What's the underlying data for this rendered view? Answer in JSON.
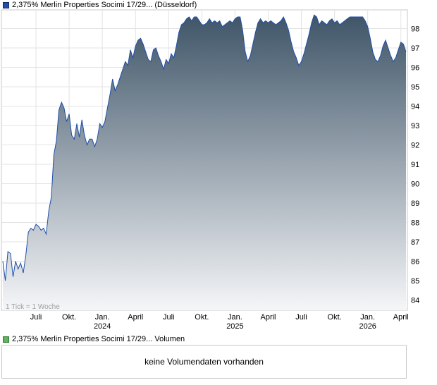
{
  "price_legend": {
    "label": "2,375% Merlin Properties Socimi 17/29... (Düsseldorf)",
    "swatch_color": "#1f4fa8"
  },
  "volume_legend": {
    "label": "2,375% Merlin Properties Socimi 17/29... Volumen",
    "swatch_color": "#5fb35f"
  },
  "volume_panel": {
    "message": "keine Volumendaten vorhanden"
  },
  "tick_note": "1 Tick = 1 Woche",
  "chart_data": {
    "type": "area",
    "title": "2,375% Merlin Properties Socimi 17/29... (Düsseldorf)",
    "ylim": [
      83.5,
      98.8
    ],
    "y_ticks": [
      84,
      85,
      86,
      87,
      88,
      89,
      90,
      91,
      92,
      93,
      94,
      95,
      96,
      97,
      98
    ],
    "x_ticks": [
      {
        "label": "Juli",
        "year": "",
        "x": 13
      },
      {
        "label": "Okt.",
        "year": "",
        "x": 26
      },
      {
        "label": "Jan.",
        "year": "2024",
        "x": 39
      },
      {
        "label": "April",
        "year": "",
        "x": 52
      },
      {
        "label": "Juli",
        "year": "",
        "x": 65
      },
      {
        "label": "Okt.",
        "year": "",
        "x": 78
      },
      {
        "label": "Jan.",
        "year": "2025",
        "x": 91
      },
      {
        "label": "April",
        "year": "",
        "x": 104
      },
      {
        "label": "Juli",
        "year": "",
        "x": 117
      },
      {
        "label": "Okt.",
        "year": "",
        "x": 130
      },
      {
        "label": "Jan.",
        "year": "2026",
        "x": 143
      },
      {
        "label": "April",
        "year": "",
        "x": 156
      }
    ],
    "xlim": [
      0,
      158
    ],
    "grid": true,
    "line_color": "#1f4fa8",
    "fill_top_color": "#3f5568",
    "fill_bottom_color": "#f5f6f8",
    "series": [
      {
        "name": "2,375% Merlin Properties Socimi 17/29... (Düsseldorf)",
        "x": [
          0,
          1,
          2,
          3,
          4,
          5,
          6,
          7,
          8,
          9,
          10,
          11,
          12,
          13,
          14,
          15,
          16,
          17,
          18,
          19,
          20,
          21,
          22,
          23,
          24,
          25,
          26,
          27,
          28,
          29,
          30,
          31,
          32,
          33,
          34,
          35,
          36,
          37,
          38,
          39,
          40,
          41,
          42,
          43,
          44,
          45,
          46,
          47,
          48,
          49,
          50,
          51,
          52,
          53,
          54,
          55,
          56,
          57,
          58,
          59,
          60,
          61,
          62,
          63,
          64,
          65,
          66,
          67,
          68,
          69,
          70,
          71,
          72,
          73,
          74,
          75,
          76,
          77,
          78,
          79,
          80,
          81,
          82,
          83,
          84,
          85,
          86,
          87,
          88,
          89,
          90,
          91,
          92,
          93,
          94,
          95,
          96,
          97,
          98,
          99,
          100,
          101,
          102,
          103,
          104,
          105,
          106,
          107,
          108,
          109,
          110,
          111,
          112,
          113,
          114,
          115,
          116,
          117,
          118,
          119,
          120,
          121,
          122,
          123,
          124,
          125,
          126,
          127,
          128,
          129,
          130,
          131,
          132,
          133,
          134,
          135,
          136,
          137,
          138,
          139,
          140,
          141,
          142,
          143,
          144,
          145,
          146,
          147,
          148,
          149,
          150,
          151,
          152,
          153,
          154,
          155,
          156,
          157,
          158
        ],
        "values": [
          86.0,
          85.0,
          86.5,
          86.4,
          85.2,
          86.0,
          85.6,
          85.9,
          85.4,
          86.3,
          87.5,
          87.7,
          87.6,
          87.9,
          87.8,
          87.6,
          87.7,
          87.4,
          88.6,
          89.3,
          91.5,
          92.2,
          93.8,
          94.2,
          93.9,
          93.2,
          93.6,
          92.5,
          92.3,
          93.1,
          92.4,
          93.3,
          92.5,
          92.0,
          92.3,
          92.3,
          91.9,
          92.3,
          93.1,
          92.9,
          93.2,
          93.9,
          94.6,
          95.4,
          94.8,
          95.1,
          95.5,
          95.9,
          96.3,
          96.1,
          96.9,
          96.5,
          97.1,
          97.4,
          97.5,
          97.2,
          96.8,
          96.4,
          96.3,
          96.9,
          97.0,
          96.6,
          96.3,
          95.9,
          96.4,
          96.2,
          96.7,
          96.5,
          97.1,
          97.8,
          98.2,
          98.3,
          98.5,
          98.6,
          98.4,
          98.6,
          98.6,
          98.4,
          98.2,
          98.2,
          98.3,
          98.5,
          98.3,
          98.4,
          98.3,
          98.4,
          98.1,
          98.2,
          98.3,
          98.4,
          98.3,
          98.5,
          98.6,
          98.6,
          97.9,
          96.8,
          96.3,
          96.6,
          97.2,
          97.8,
          98.3,
          98.5,
          98.3,
          98.4,
          98.3,
          98.4,
          98.3,
          98.2,
          98.3,
          98.4,
          98.6,
          98.3,
          97.9,
          97.3,
          96.8,
          96.5,
          96.1,
          96.3,
          96.7,
          97.2,
          97.7,
          98.3,
          98.7,
          98.6,
          98.2,
          98.4,
          98.3,
          98.2,
          98.4,
          98.5,
          98.3,
          98.4,
          98.2,
          98.3,
          98.4,
          98.5,
          98.6,
          98.6,
          98.6,
          98.6,
          98.6,
          98.6,
          98.4,
          98.1,
          97.5,
          96.8,
          96.4,
          96.3,
          96.6,
          97.1,
          97.4,
          97.0,
          96.6,
          96.3,
          96.5,
          96.9,
          97.3,
          97.2,
          96.8
        ]
      }
    ]
  }
}
